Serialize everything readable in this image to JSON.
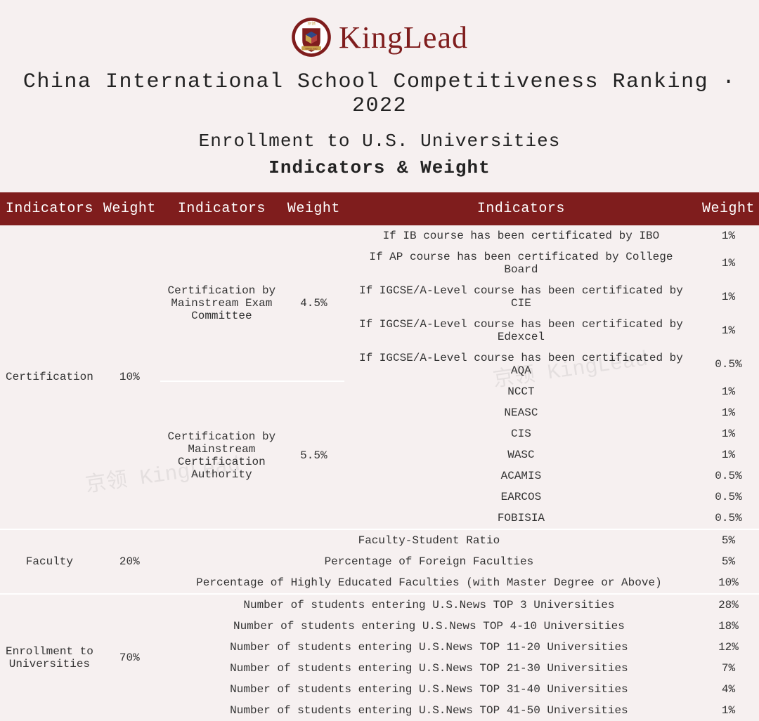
{
  "brand": "KingLead",
  "logo": {
    "ring_color": "#7f1d1d",
    "inner_bg": "#ffffff",
    "shield_color": "#7f1d1d",
    "cube_top": "#2f4a8a",
    "cube_left": "#c9a34a",
    "cube_right": "#b34040",
    "banner_text": "KingLead",
    "top_chars": "京领"
  },
  "title": "China International School Competitiveness Ranking · 2022",
  "subtitle": "Enrollment to U.S. Universities",
  "sub2": "Indicators & Weight",
  "watermark": "京领 KingLead",
  "colors": {
    "page_bg": "#f6f0f0",
    "header_bg": "#7f1d1d",
    "header_text": "#ffffff",
    "body_text": "#333333",
    "separator": "#ffffff"
  },
  "typography": {
    "brand_fontsize": 44,
    "title_fontsize": 30,
    "subtitle_fontsize": 26,
    "header_fontsize": 20,
    "cell_fontsize": 16,
    "brand_family": "Times New Roman",
    "mono_family": "Courier New"
  },
  "headers": [
    "Indicators",
    "Weight",
    "Indicators",
    "Weight",
    "Indicators",
    "Weight"
  ],
  "groups": [
    {
      "level1": "Certification",
      "weight1": "10%",
      "subs": [
        {
          "level2": "Certification by Mainstream Exam Committee",
          "weight2": "4.5%",
          "details": [
            {
              "label": "If IB course has been certificated by IBO",
              "w": "1%"
            },
            {
              "label": "If AP course has been certificated by College Board",
              "w": "1%"
            },
            {
              "label": "If IGCSE/A-Level course has been certificated by CIE",
              "w": "1%"
            },
            {
              "label": "If IGCSE/A-Level course has been certificated by Edexcel",
              "w": "1%"
            },
            {
              "label": "If IGCSE/A-Level course has been certificated by AQA",
              "w": "0.5%"
            }
          ]
        },
        {
          "level2": "Certification by Mainstream Certification Authority",
          "weight2": "5.5%",
          "details": [
            {
              "label": "NCCT",
              "w": "1%"
            },
            {
              "label": "NEASC",
              "w": "1%"
            },
            {
              "label": "CIS",
              "w": "1%"
            },
            {
              "label": "WASC",
              "w": "1%"
            },
            {
              "label": "ACAMIS",
              "w": "0.5%"
            },
            {
              "label": "EARCOS",
              "w": "0.5%"
            },
            {
              "label": "FOBISIA",
              "w": "0.5%"
            }
          ]
        }
      ]
    },
    {
      "level1": "Faculty",
      "weight1": "20%",
      "subs": [
        {
          "level2": "",
          "weight2": "",
          "span_details_full": true,
          "details": [
            {
              "label": "Faculty-Student Ratio",
              "w": "5%"
            },
            {
              "label": "Percentage of Foreign Faculties",
              "w": "5%"
            },
            {
              "label": "Percentage of Highly Educated Faculties (with Master Degree or Above)",
              "w": "10%"
            }
          ]
        }
      ]
    },
    {
      "level1": "Enrollment to Universities",
      "weight1": "70%",
      "subs": [
        {
          "level2": "",
          "weight2": "",
          "span_details_full": true,
          "details": [
            {
              "label": "Number of students entering U.S.News TOP 3 Universities",
              "w": "28%"
            },
            {
              "label": "Number of students entering U.S.News TOP 4-10 Universities",
              "w": "18%"
            },
            {
              "label": "Number of students entering U.S.News TOP 11-20 Universities",
              "w": "12%"
            },
            {
              "label": "Number of students entering U.S.News TOP 21-30 Universities",
              "w": "7%"
            },
            {
              "label": "Number of students entering U.S.News TOP 31-40 Universities",
              "w": "4%"
            },
            {
              "label": "Number of students entering U.S.News TOP 41-50 Universities",
              "w": "1%"
            }
          ]
        }
      ]
    }
  ]
}
